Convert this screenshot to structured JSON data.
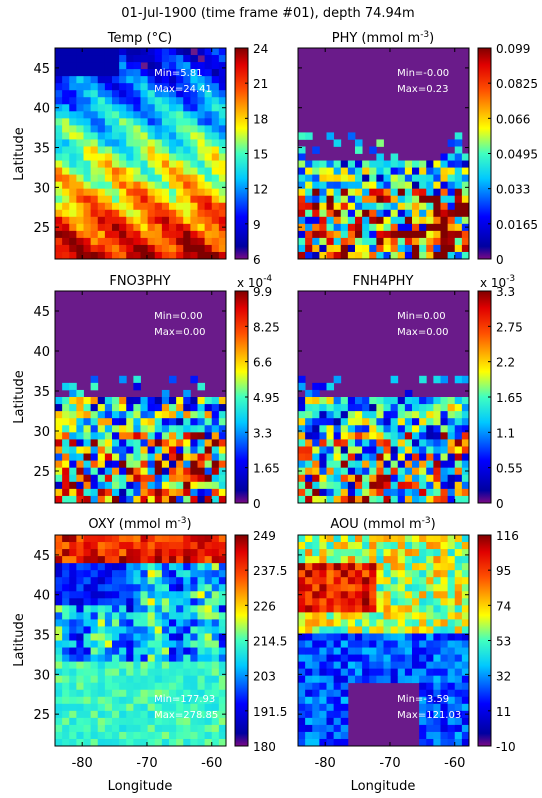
{
  "figure": {
    "title": "01-Jul-1900 (time frame #01), depth 74.94m",
    "xlabel": "Longitude",
    "ylabel": "Latitude",
    "x_ticks": [
      -80,
      -70,
      -60
    ],
    "y_ticks": [
      25,
      30,
      35,
      40,
      45
    ],
    "xlim": [
      -84.2,
      -57.8
    ],
    "ylim": [
      21,
      47.5
    ]
  },
  "chart_data": [
    {
      "type": "heatmap",
      "field": "temp",
      "title_parts": [
        "Temp (°C)"
      ],
      "colorbar": {
        "min": 6,
        "max": 24,
        "ticks": [
          "24",
          "21",
          "18",
          "15",
          "12",
          "9",
          "6"
        ],
        "exponent_base": "",
        "exponent": ""
      },
      "stats": {
        "min": "Min=5.81",
        "max": "Max=24.41",
        "position": "top-right"
      },
      "palette": [
        "#7b0a84",
        "#0000ff",
        "#00c8ff",
        "#ffff00",
        "#ff0000",
        "#800000"
      ]
    },
    {
      "type": "heatmap",
      "field": "phy",
      "title_parts": [
        "PHY (mmol m",
        "-3",
        ")"
      ],
      "colorbar": {
        "min": 0,
        "max": 0.099,
        "ticks": [
          "0.099",
          "0.0825",
          "0.066",
          "0.0495",
          "0.033",
          "0.0165",
          "0"
        ],
        "exponent_base": "",
        "exponent": ""
      },
      "stats": {
        "min": "Min=-0.00",
        "max": "Max=0.23",
        "position": "top-right"
      }
    },
    {
      "type": "heatmap",
      "field": "fno3phy",
      "title_parts": [
        "FNO3PHY"
      ],
      "colorbar": {
        "min": 0,
        "max": 9.9,
        "ticks": [
          "9.9",
          "8.25",
          "6.6",
          "4.95",
          "3.3",
          "1.65",
          "0"
        ],
        "exponent_base": "x 10",
        "exponent": "-4"
      },
      "stats": {
        "min": "Min=0.00",
        "max": "Max=0.00",
        "position": "top-right"
      }
    },
    {
      "type": "heatmap",
      "field": "fnh4phy",
      "title_parts": [
        "FNH4PHY"
      ],
      "colorbar": {
        "min": 0,
        "max": 3.3,
        "ticks": [
          "3.3",
          "2.75",
          "2.2",
          "1.65",
          "1.1",
          "0.55",
          "0"
        ],
        "exponent_base": "x 10",
        "exponent": "-3"
      },
      "stats": {
        "min": "Min=0.00",
        "max": "Max=0.00",
        "position": "top-right"
      }
    },
    {
      "type": "heatmap",
      "field": "oxy",
      "title_parts": [
        "OXY (mmol m",
        "-3",
        ")"
      ],
      "colorbar": {
        "min": 180,
        "max": 249,
        "ticks": [
          "249",
          "237.5",
          "226",
          "214.5",
          "203",
          "191.5",
          "180"
        ],
        "exponent_base": "",
        "exponent": ""
      },
      "stats": {
        "min": "Min=177.93",
        "max": "Max=278.85",
        "position": "bottom-right"
      }
    },
    {
      "type": "heatmap",
      "field": "aou",
      "title_parts": [
        "AOU (mmol m",
        "-3",
        ")"
      ],
      "colorbar": {
        "min": -10,
        "max": 116,
        "ticks": [
          "116",
          "95",
          "74",
          "53",
          "32",
          "11",
          "-10"
        ],
        "exponent_base": "",
        "exponent": ""
      },
      "stats": {
        "min": "Min=-3.59",
        "max": "Max=121.03",
        "position": "bottom-right"
      }
    }
  ]
}
